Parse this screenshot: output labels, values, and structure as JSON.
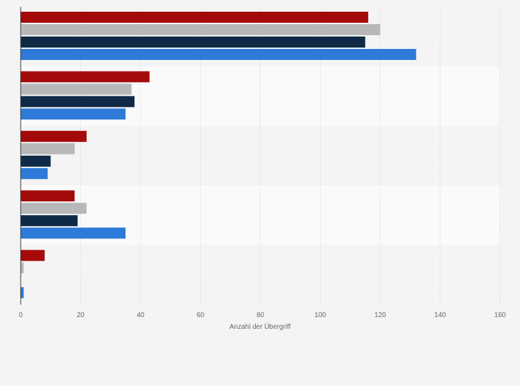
{
  "chart_data": {
    "type": "bar",
    "orientation": "horizontal",
    "title": "",
    "xlabel": "Anzahl der Übergriff",
    "ylabel": "",
    "xlim": [
      0,
      160
    ],
    "x_ticks": [
      0,
      20,
      40,
      60,
      80,
      100,
      120,
      140,
      160
    ],
    "grid": true,
    "legend": "none",
    "categories": [
      "",
      "",
      "",
      "",
      ""
    ],
    "series": [
      {
        "color": "#a50a0a",
        "values": [
          116,
          43,
          22,
          18,
          8
        ]
      },
      {
        "color": "#b8b8b8",
        "values": [
          120,
          37,
          18,
          22,
          1
        ]
      },
      {
        "color": "#0e2a47",
        "values": [
          115,
          38,
          10,
          19,
          0
        ]
      },
      {
        "color": "#2d7ad8",
        "values": [
          132,
          35,
          9,
          35,
          1
        ]
      }
    ]
  }
}
